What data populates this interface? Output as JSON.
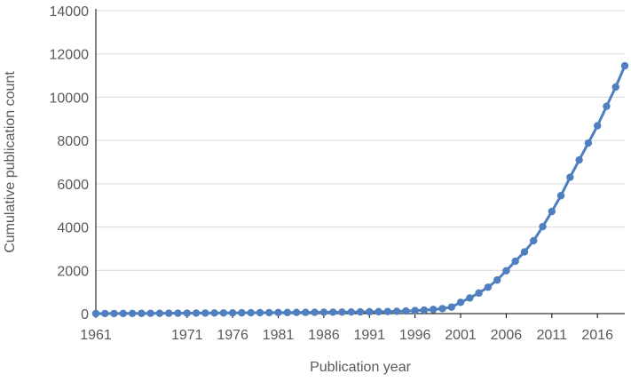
{
  "chart_data": {
    "type": "line",
    "title": "",
    "xlabel": "Publication year",
    "ylabel": "Cumulative publication count",
    "xlim": [
      1961,
      2019
    ],
    "ylim": [
      0,
      14000
    ],
    "x_ticks": [
      1961,
      1971,
      1976,
      1981,
      1986,
      1991,
      1996,
      2001,
      2006,
      2011,
      2016
    ],
    "x_tick_labels": [
      "1961",
      "1971",
      "1976",
      "1981",
      "1986",
      "1991",
      "1996",
      "2001",
      "2006",
      "2011",
      "2016"
    ],
    "y_ticks": [
      0,
      2000,
      4000,
      6000,
      8000,
      10000,
      12000,
      14000
    ],
    "y_tick_labels": [
      "0",
      "2000",
      "4000",
      "6000",
      "8000",
      "10000",
      "12000",
      "14000"
    ],
    "grid": "horizontal",
    "legend": "none",
    "series_color": "#4f7fbf",
    "x": [
      1961,
      1962,
      1963,
      1964,
      1965,
      1966,
      1967,
      1968,
      1969,
      1970,
      1971,
      1972,
      1973,
      1974,
      1975,
      1976,
      1977,
      1978,
      1979,
      1980,
      1981,
      1982,
      1983,
      1984,
      1985,
      1986,
      1987,
      1988,
      1989,
      1990,
      1991,
      1992,
      1993,
      1994,
      1995,
      1996,
      1997,
      1998,
      1999,
      2000,
      2001,
      2002,
      2003,
      2004,
      2005,
      2006,
      2007,
      2008,
      2009,
      2010,
      2011,
      2012,
      2013,
      2014,
      2015,
      2016,
      2017,
      2018,
      2019
    ],
    "values": [
      0,
      2,
      4,
      6,
      8,
      10,
      12,
      14,
      16,
      18,
      20,
      22,
      25,
      28,
      30,
      33,
      36,
      39,
      42,
      45,
      48,
      51,
      54,
      57,
      60,
      63,
      66,
      70,
      74,
      78,
      82,
      87,
      95,
      105,
      120,
      140,
      160,
      190,
      230,
      300,
      520,
      720,
      950,
      1220,
      1550,
      1980,
      2420,
      2850,
      3370,
      4020,
      4720,
      5450,
      6300,
      7100,
      7880,
      8680,
      9580,
      10470,
      11450
    ]
  }
}
